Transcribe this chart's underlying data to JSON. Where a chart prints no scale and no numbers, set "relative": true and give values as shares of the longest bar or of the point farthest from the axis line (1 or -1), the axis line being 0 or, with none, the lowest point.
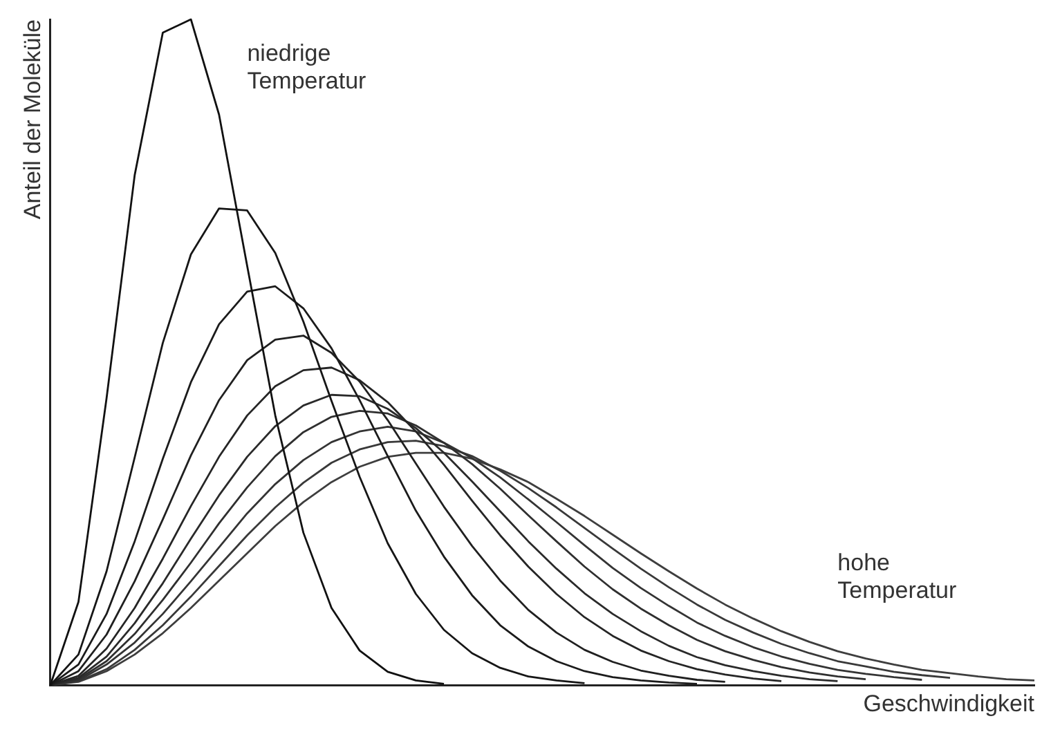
{
  "chart_data": {
    "type": "line",
    "relative": true,
    "xlabel": "Geschwindigkeit",
    "ylabel": "Anteil der Moleküle",
    "annotations": [
      "niedrige Temperatur",
      "hohe Temperatur"
    ],
    "categories": [
      null,
      null,
      null,
      null,
      null,
      null,
      null,
      null,
      null,
      null,
      null,
      null,
      null,
      null,
      null,
      null,
      null,
      null,
      null,
      null,
      null,
      null,
      null,
      null,
      null,
      null,
      null,
      null,
      null,
      null,
      null,
      null,
      null,
      null,
      null,
      null
    ],
    "series": [
      {
        "color": "#111111",
        "values": [
          0,
          0.125,
          0.431,
          0.766,
          0.98,
          1,
          0.857,
          0.63,
          0.405,
          0.229,
          0.116,
          0.052,
          0.02,
          0.007,
          0.002,
          null,
          null,
          null,
          null,
          null,
          null,
          null,
          null,
          null,
          null,
          null,
          null,
          null,
          null,
          null,
          null,
          null,
          null,
          null,
          null,
          null
        ]
      },
      {
        "color": "#161616",
        "values": [
          0,
          0.046,
          0.171,
          0.342,
          0.514,
          0.647,
          0.716,
          0.713,
          0.649,
          0.546,
          0.427,
          0.313,
          0.213,
          0.137,
          0.083,
          0.048,
          0.026,
          0.013,
          0.007,
          0.003,
          null,
          null,
          null,
          null,
          null,
          null,
          null,
          null,
          null,
          null,
          null,
          null,
          null,
          null,
          null,
          null
        ]
      },
      {
        "color": "#1b1b1b",
        "values": [
          0,
          0.031,
          0.107,
          0.216,
          0.34,
          0.455,
          0.542,
          0.591,
          0.599,
          0.566,
          0.506,
          0.428,
          0.344,
          0.262,
          0.193,
          0.135,
          0.09,
          0.058,
          0.036,
          0.021,
          0.012,
          0.007,
          0.004,
          0.002,
          null,
          null,
          null,
          null,
          null,
          null,
          null,
          null,
          null,
          null,
          null,
          null
        ]
      },
      {
        "color": "#202020",
        "values": [
          0,
          0.021,
          0.076,
          0.156,
          0.249,
          0.345,
          0.428,
          0.488,
          0.519,
          0.525,
          0.499,
          0.456,
          0.398,
          0.333,
          0.268,
          0.209,
          0.157,
          0.113,
          0.079,
          0.053,
          0.035,
          0.022,
          0.014,
          0.008,
          0.005,
          null,
          null,
          null,
          null,
          null,
          null,
          null,
          null,
          null,
          null,
          null
        ]
      },
      {
        "color": "#252525",
        "values": [
          0,
          0.014,
          0.055,
          0.116,
          0.19,
          0.269,
          0.343,
          0.405,
          0.449,
          0.473,
          0.477,
          0.458,
          0.425,
          0.381,
          0.331,
          0.277,
          0.225,
          0.178,
          0.137,
          0.102,
          0.074,
          0.052,
          0.036,
          0.024,
          0.016,
          0.01,
          0.006,
          null,
          null,
          null,
          null,
          null,
          null,
          null,
          null,
          null
        ]
      },
      {
        "color": "#2a2a2a",
        "values": [
          0,
          0.011,
          0.043,
          0.093,
          0.153,
          0.22,
          0.285,
          0.343,
          0.389,
          0.42,
          0.436,
          0.434,
          0.415,
          0.386,
          0.349,
          0.306,
          0.261,
          0.216,
          0.175,
          0.138,
          0.107,
          0.081,
          0.059,
          0.042,
          0.03,
          0.021,
          0.014,
          0.009,
          0.006,
          null,
          null,
          null,
          null,
          null,
          null,
          null
        ]
      },
      {
        "color": "#2f2f2f",
        "values": [
          0,
          0.009,
          0.036,
          0.077,
          0.128,
          0.184,
          0.243,
          0.297,
          0.344,
          0.38,
          0.403,
          0.412,
          0.408,
          0.39,
          0.364,
          0.332,
          0.295,
          0.255,
          0.216,
          0.178,
          0.144,
          0.115,
          0.09,
          0.068,
          0.051,
          0.038,
          0.027,
          0.019,
          0.013,
          0.009,
          null,
          null,
          null,
          null,
          null,
          null
        ]
      },
      {
        "color": "#343434",
        "values": [
          0,
          0.007,
          0.031,
          0.064,
          0.107,
          0.156,
          0.207,
          0.258,
          0.302,
          0.338,
          0.365,
          0.381,
          0.388,
          0.381,
          0.364,
          0.341,
          0.312,
          0.279,
          0.245,
          0.21,
          0.176,
          0.146,
          0.119,
          0.094,
          0.074,
          0.057,
          0.043,
          0.032,
          0.023,
          0.017,
          0.012,
          0.008,
          null,
          null,
          null,
          null
        ]
      },
      {
        "color": "#393939",
        "values": [
          0,
          0.006,
          0.024,
          0.053,
          0.09,
          0.133,
          0.179,
          0.225,
          0.267,
          0.304,
          0.334,
          0.354,
          0.365,
          0.367,
          0.359,
          0.344,
          0.322,
          0.296,
          0.267,
          0.236,
          0.205,
          0.175,
          0.147,
          0.121,
          0.098,
          0.079,
          0.062,
          0.048,
          0.036,
          0.028,
          0.02,
          0.015,
          0.011,
          null,
          null,
          null
        ]
      },
      {
        "color": "#3e3e3e",
        "values": [
          0,
          0.005,
          0.021,
          0.046,
          0.078,
          0.116,
          0.157,
          0.198,
          0.239,
          0.275,
          0.305,
          0.328,
          0.343,
          0.349,
          0.349,
          0.34,
          0.324,
          0.305,
          0.28,
          0.254,
          0.226,
          0.198,
          0.171,
          0.145,
          0.121,
          0.1,
          0.081,
          0.065,
          0.051,
          0.04,
          0.031,
          0.023,
          0.018,
          0.013,
          0.009,
          0.007
        ]
      }
    ],
    "grid": false,
    "legend": false,
    "tick_labels": false,
    "marker": "none",
    "line_style": "solid"
  }
}
